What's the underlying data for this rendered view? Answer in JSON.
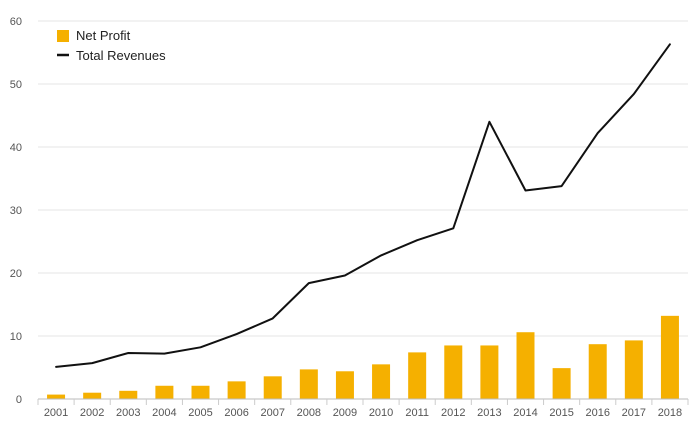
{
  "chart_data": {
    "type": "bar",
    "categories": [
      "2001",
      "2002",
      "2003",
      "2004",
      "2005",
      "2006",
      "2007",
      "2008",
      "2009",
      "2010",
      "2011",
      "2012",
      "2013",
      "2014",
      "2015",
      "2016",
      "2017",
      "2018"
    ],
    "series": [
      {
        "name": "Net Profit",
        "kind": "bar",
        "color": "#f5b000",
        "values": [
          0.7,
          1.0,
          1.3,
          2.1,
          2.1,
          2.8,
          3.6,
          4.7,
          4.4,
          5.5,
          7.4,
          8.5,
          8.5,
          10.6,
          4.9,
          8.7,
          9.3,
          13.2
        ]
      },
      {
        "name": "Total Revenues",
        "kind": "line",
        "color": "#111111",
        "values": [
          5.1,
          5.7,
          7.3,
          7.2,
          8.2,
          10.3,
          12.8,
          18.4,
          19.6,
          22.8,
          25.2,
          27.1,
          44.0,
          33.1,
          33.8,
          42.2,
          48.4,
          56.3
        ]
      }
    ],
    "ylim": [
      0,
      60
    ],
    "yticks": [
      0,
      10,
      20,
      30,
      40,
      50,
      60
    ],
    "grid": true,
    "legend_position": "top-left",
    "title": "",
    "xlabel": "",
    "ylabel": ""
  }
}
